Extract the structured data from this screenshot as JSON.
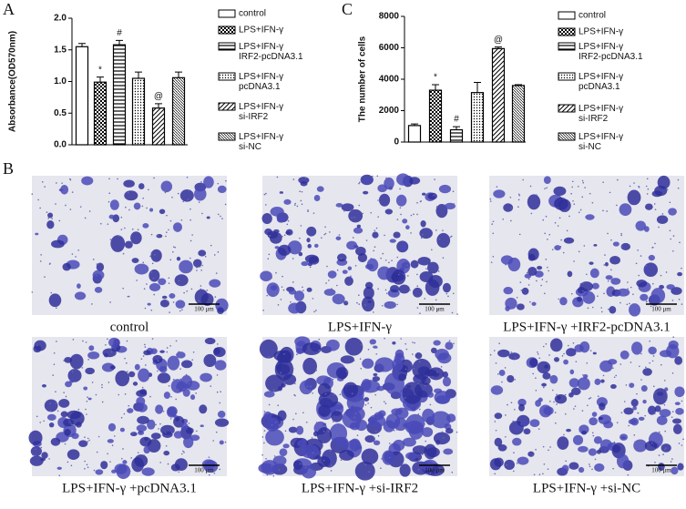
{
  "chart_data": [
    {
      "type": "bar",
      "panel": "A",
      "y_label": "Absorbance(OD570nm)",
      "categories": [
        "control",
        "LPS+IFN-γ",
        "LPS+IFN-γ\nIRF2-pcDNA3.1",
        "LPS+IFN-γ\npcDNA3.1",
        "LPS+IFN-γ\nsi-IRF2",
        "LPS+IFN-γ\nsi-NC"
      ],
      "values": [
        1.55,
        0.99,
        1.58,
        1.05,
        0.58,
        1.06
      ],
      "errors": [
        0.05,
        0.08,
        0.07,
        0.1,
        0.07,
        0.09
      ],
      "bar_labels": [
        null,
        "*",
        "#",
        null,
        "@",
        null
      ],
      "ylim": [
        0,
        2
      ],
      "yticks": [
        {
          "value": 0,
          "label": "0.0"
        },
        0.5,
        {
          "value": 1,
          "label": "1.0"
        },
        1.5,
        {
          "value": 2,
          "label": "2.0"
        }
      ],
      "color": "#000000"
    },
    {
      "type": "bar",
      "panel": "C",
      "y_label": "The number of cells",
      "categories": [
        "control",
        "LPS+IFN-γ",
        "LPS+IFN-γ\nIRF2-pcDNA3.1",
        "LPS+IFN-γ\npcDNA3.1",
        "LPS+IFN-γ\nsi-IRF2",
        "LPS+IFN-γ\nsi-NC"
      ],
      "values": [
        1050,
        3300,
        780,
        3150,
        5950,
        3600
      ],
      "errors": [
        100,
        350,
        200,
        650,
        100,
        50
      ],
      "bar_labels": [
        null,
        "*",
        "#",
        null,
        "@",
        null
      ],
      "ylim": [
        0,
        8000
      ],
      "yticks": [
        0,
        2000,
        4000,
        6000,
        8000
      ],
      "color": "#000000"
    }
  ],
  "images": {
    "panel": "B",
    "scale_label": "100 μm",
    "captions": [
      "control",
      "LPS+IFN-γ",
      "LPS+IFN-γ +IRF2-pcDNA3.1",
      "LPS+IFN-γ +pcDNA3.1",
      "LPS+IFN-γ +si-IRF2",
      "LPS+IFN-γ +si-NC"
    ]
  }
}
